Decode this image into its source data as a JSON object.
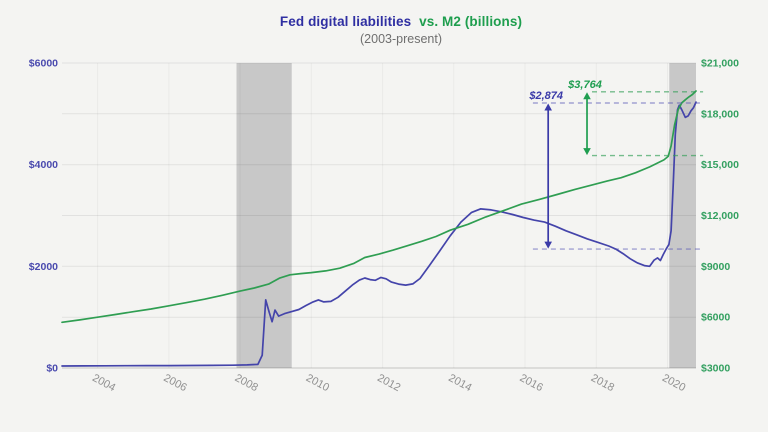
{
  "header": {
    "title_primary": "Fed digital liabilities",
    "title_secondary": "vs. M2 (billions)",
    "subtitle": "(2003-present)",
    "title_primary_color": "#2f2fa2",
    "title_secondary_color": "#1e9e4e"
  },
  "page": {
    "background": "#f4f4f2"
  },
  "chart_data": {
    "type": "line",
    "title": "Fed digital liabilities vs. M2 (billions)",
    "subtitle": "(2003-present)",
    "x_axis": {
      "range": [
        2003.0,
        2020.8
      ],
      "ticks": [
        2004,
        2006,
        2008,
        2010,
        2012,
        2014,
        2016,
        2018,
        2020
      ],
      "tick_color": "#909090"
    },
    "left_axis": {
      "range": [
        0,
        6000
      ],
      "gridline_values": [
        0,
        1000,
        2000,
        3000,
        4000,
        5000,
        6000
      ],
      "ticks": [
        {
          "value": 0,
          "label": "$0"
        },
        {
          "value": 2000,
          "label": "$2000"
        },
        {
          "value": 4000,
          "label": "$4000"
        },
        {
          "value": 6000,
          "label": "$6000"
        }
      ],
      "color": "#4a4aae"
    },
    "right_axis": {
      "range": [
        3000,
        21000
      ],
      "ticks": [
        {
          "value": 3000,
          "label": "$3000"
        },
        {
          "value": 6000,
          "label": "$6000"
        },
        {
          "value": 9000,
          "label": "$9000"
        },
        {
          "value": 12000,
          "label": "$12,000"
        },
        {
          "value": 15000,
          "label": "$15,000"
        },
        {
          "value": 18000,
          "label": "$18,000"
        },
        {
          "value": 21000,
          "label": "$21,000"
        }
      ],
      "color": "#33a060"
    },
    "recession_bands": [
      {
        "from": 2007.9,
        "to": 2009.45
      },
      {
        "from": 2020.05,
        "to": 2020.8
      }
    ],
    "band_color": "#bdbdbd",
    "series": [
      {
        "name": "Fed digital liabilities",
        "axis": "left",
        "color": "#4444aa",
        "points": [
          [
            2003.0,
            40
          ],
          [
            2003.6,
            42
          ],
          [
            2004.2,
            44
          ],
          [
            2004.8,
            46
          ],
          [
            2005.4,
            47
          ],
          [
            2006.0,
            48
          ],
          [
            2006.6,
            50
          ],
          [
            2007.2,
            52
          ],
          [
            2007.8,
            56
          ],
          [
            2008.2,
            60
          ],
          [
            2008.5,
            70
          ],
          [
            2008.62,
            250
          ],
          [
            2008.72,
            1340
          ],
          [
            2008.82,
            1090
          ],
          [
            2008.9,
            910
          ],
          [
            2008.98,
            1140
          ],
          [
            2009.08,
            1020
          ],
          [
            2009.25,
            1070
          ],
          [
            2009.45,
            1110
          ],
          [
            2009.65,
            1150
          ],
          [
            2009.85,
            1230
          ],
          [
            2010.05,
            1300
          ],
          [
            2010.2,
            1340
          ],
          [
            2010.35,
            1300
          ],
          [
            2010.55,
            1310
          ],
          [
            2010.75,
            1390
          ],
          [
            2010.95,
            1510
          ],
          [
            2011.15,
            1630
          ],
          [
            2011.35,
            1730
          ],
          [
            2011.5,
            1770
          ],
          [
            2011.65,
            1740
          ],
          [
            2011.8,
            1725
          ],
          [
            2011.95,
            1780
          ],
          [
            2012.1,
            1755
          ],
          [
            2012.25,
            1690
          ],
          [
            2012.45,
            1650
          ],
          [
            2012.65,
            1630
          ],
          [
            2012.85,
            1655
          ],
          [
            2013.05,
            1760
          ],
          [
            2013.3,
            2000
          ],
          [
            2013.6,
            2300
          ],
          [
            2013.9,
            2600
          ],
          [
            2014.2,
            2870
          ],
          [
            2014.5,
            3060
          ],
          [
            2014.75,
            3130
          ],
          [
            2015.05,
            3110
          ],
          [
            2015.35,
            3070
          ],
          [
            2015.65,
            3020
          ],
          [
            2015.95,
            2960
          ],
          [
            2016.25,
            2910
          ],
          [
            2016.55,
            2870
          ],
          [
            2016.85,
            2790
          ],
          [
            2017.15,
            2700
          ],
          [
            2017.45,
            2620
          ],
          [
            2017.75,
            2540
          ],
          [
            2018.05,
            2470
          ],
          [
            2018.35,
            2400
          ],
          [
            2018.55,
            2340
          ],
          [
            2018.75,
            2250
          ],
          [
            2018.95,
            2150
          ],
          [
            2019.15,
            2070
          ],
          [
            2019.35,
            2015
          ],
          [
            2019.5,
            2000
          ],
          [
            2019.62,
            2120
          ],
          [
            2019.72,
            2165
          ],
          [
            2019.8,
            2115
          ],
          [
            2019.88,
            2230
          ],
          [
            2019.96,
            2340
          ],
          [
            2020.04,
            2430
          ],
          [
            2020.1,
            2700
          ],
          [
            2020.16,
            3600
          ],
          [
            2020.22,
            4600
          ],
          [
            2020.28,
            5080
          ],
          [
            2020.33,
            5170
          ],
          [
            2020.4,
            5080
          ],
          [
            2020.5,
            4930
          ],
          [
            2020.58,
            4960
          ],
          [
            2020.66,
            5060
          ],
          [
            2020.73,
            5120
          ],
          [
            2020.8,
            5230
          ]
        ]
      },
      {
        "name": "M2",
        "axis": "right",
        "color": "#2f9e52",
        "points": [
          [
            2003.0,
            5700
          ],
          [
            2003.5,
            5840
          ],
          [
            2004.0,
            6000
          ],
          [
            2004.5,
            6160
          ],
          [
            2005.0,
            6320
          ],
          [
            2005.5,
            6480
          ],
          [
            2006.0,
            6670
          ],
          [
            2006.5,
            6860
          ],
          [
            2007.0,
            7060
          ],
          [
            2007.5,
            7290
          ],
          [
            2008.0,
            7540
          ],
          [
            2008.4,
            7720
          ],
          [
            2008.8,
            7950
          ],
          [
            2009.1,
            8300
          ],
          [
            2009.4,
            8500
          ],
          [
            2009.7,
            8570
          ],
          [
            2010.0,
            8630
          ],
          [
            2010.4,
            8730
          ],
          [
            2010.8,
            8890
          ],
          [
            2011.2,
            9180
          ],
          [
            2011.5,
            9520
          ],
          [
            2011.9,
            9720
          ],
          [
            2012.3,
            9960
          ],
          [
            2012.7,
            10220
          ],
          [
            2013.1,
            10480
          ],
          [
            2013.5,
            10760
          ],
          [
            2013.9,
            11130
          ],
          [
            2014.4,
            11480
          ],
          [
            2014.9,
            11920
          ],
          [
            2015.4,
            12290
          ],
          [
            2015.9,
            12670
          ],
          [
            2016.4,
            12950
          ],
          [
            2016.9,
            13240
          ],
          [
            2017.4,
            13540
          ],
          [
            2017.9,
            13810
          ],
          [
            2018.3,
            14030
          ],
          [
            2018.7,
            14230
          ],
          [
            2019.1,
            14520
          ],
          [
            2019.5,
            14870
          ],
          [
            2019.9,
            15280
          ],
          [
            2020.02,
            15490
          ],
          [
            2020.1,
            16100
          ],
          [
            2020.2,
            17350
          ],
          [
            2020.3,
            18250
          ],
          [
            2020.4,
            18650
          ],
          [
            2020.5,
            18830
          ],
          [
            2020.6,
            19000
          ],
          [
            2020.7,
            19140
          ],
          [
            2020.8,
            19350
          ]
        ]
      }
    ],
    "annotations": [
      {
        "series": "Fed digital liabilities",
        "label": "$2,874",
        "axis": "left",
        "color": "#3a3aa8",
        "dash_color": "rgba(80,80,180,0.5)",
        "arrow_year": 2016.65,
        "top_value": 5214,
        "bottom_value": 2340,
        "dash_start_year": 2016.22,
        "dash_end_year": 2021.0
      },
      {
        "series": "M2",
        "label": "$3,764",
        "axis": "right",
        "color": "#1f9e50",
        "dash_color": "rgba(47,158,84,0.65)",
        "arrow_year": 2017.74,
        "top_value": 19300,
        "bottom_value": 15536,
        "dash_start_year": 2017.88,
        "dash_end_year": 2021.0
      }
    ],
    "legend": "none",
    "grid": true
  }
}
